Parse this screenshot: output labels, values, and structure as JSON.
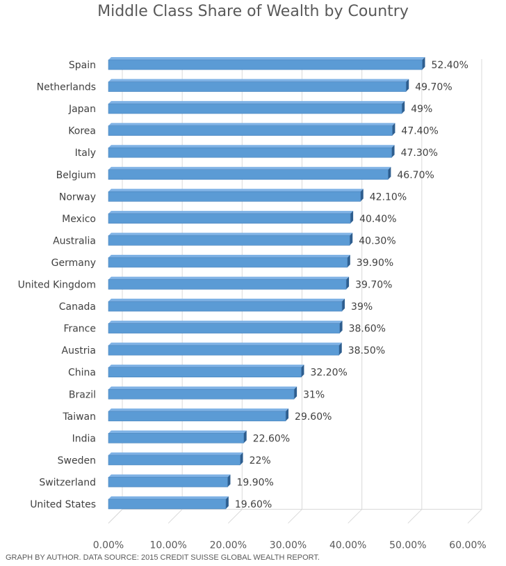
{
  "caption": "GRAPH BY AUTHOR. DATA SOURCE: 2015 CREDIT SUISSE GLOBAL WEALTH REPORT.",
  "chart_data": {
    "type": "bar",
    "orientation": "horizontal",
    "style": "3d-clustered-bar",
    "title": "Middle Class Share of Wealth by Country",
    "xlabel": "",
    "ylabel": "",
    "xlim": [
      0,
      60
    ],
    "xticks": [
      "0.00%",
      "10.00%",
      "20.00%",
      "30.00%",
      "40.00%",
      "50.00%",
      "60.00%"
    ],
    "grid": true,
    "legend": "none",
    "bar_color": "#5B9BD5",
    "bar_dark_color": "#2E5E8F",
    "categories": [
      "Spain",
      "Netherlands",
      "Japan",
      "Korea",
      "Italy",
      "Belgium",
      "Norway",
      "Mexico",
      "Australia",
      "Germany",
      "United Kingdom",
      "Canada",
      "France",
      "Austria",
      "China",
      "Brazil",
      "Taiwan",
      "India",
      "Sweden",
      "Switzerland",
      "United States"
    ],
    "values": [
      52.4,
      49.7,
      49,
      47.4,
      47.3,
      46.7,
      42.1,
      40.4,
      40.3,
      39.9,
      39.7,
      39,
      38.6,
      38.5,
      32.2,
      31,
      29.6,
      22.6,
      22,
      19.9,
      19.6
    ],
    "data_labels": [
      "52.40%",
      "49.70%",
      "49%",
      "47.40%",
      "47.30%",
      "46.70%",
      "42.10%",
      "40.40%",
      "40.30%",
      "39.90%",
      "39.70%",
      "39%",
      "38.60%",
      "38.50%",
      "32.20%",
      "31%",
      "29.60%",
      "22.60%",
      "22%",
      "19.90%",
      "19.60%"
    ]
  }
}
